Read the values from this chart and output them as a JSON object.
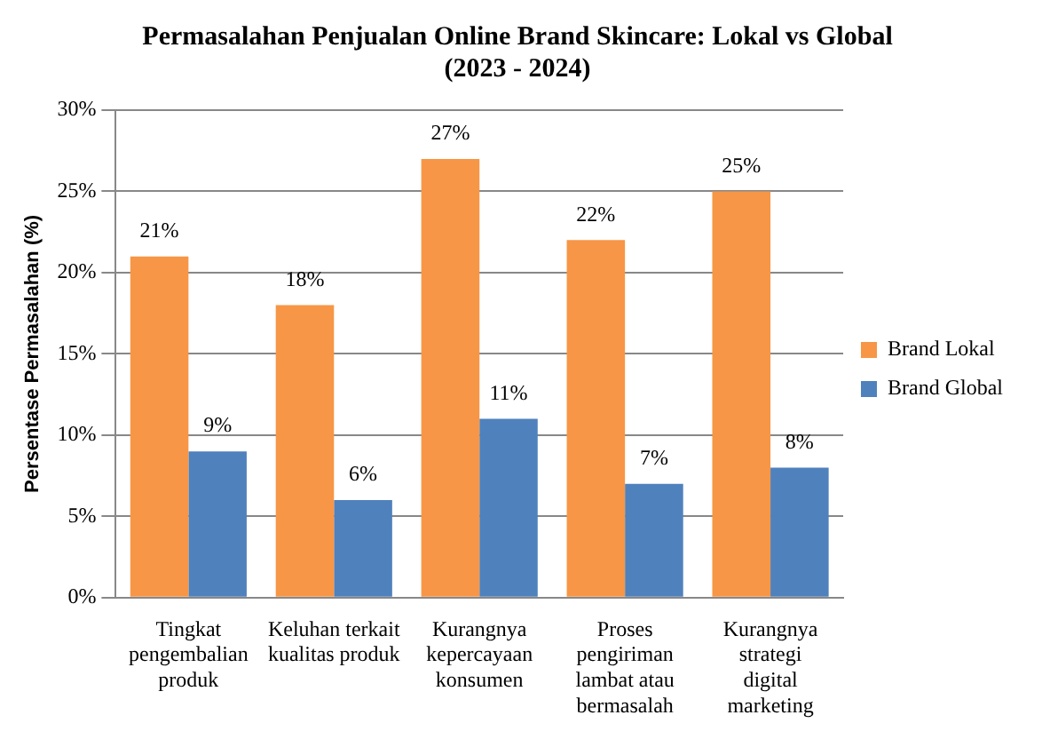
{
  "chart_data": {
    "type": "bar",
    "title": "Permasalahan Penjualan Online Brand Skincare: Lokal vs Global",
    "subtitle": "(2023 - 2024)",
    "ylabel": "Persentase Permasalahan (%)",
    "categories": [
      "Tingkat pengembalian produk",
      "Keluhan terkait kualitas produk",
      "Kurangnya kepercayaan konsumen",
      "Proses pengiriman lambat atau bermasalah",
      "Kurangnya strategi digital marketing"
    ],
    "series": [
      {
        "name": "Brand Lokal",
        "color": "#f79646",
        "values": [
          21,
          18,
          27,
          22,
          25
        ],
        "value_labels": [
          "21%",
          "18%",
          "27%",
          "22%",
          "25%"
        ]
      },
      {
        "name": "Brand Global",
        "color": "#4f81bd",
        "values": [
          9,
          6,
          11,
          7,
          8
        ],
        "value_labels": [
          "9%",
          "6%",
          "11%",
          "7%",
          "8%"
        ]
      }
    ],
    "ylim": [
      0,
      30
    ],
    "yticks": [
      {
        "value": 0,
        "label": "0%"
      },
      {
        "value": 5,
        "label": "5%"
      },
      {
        "value": 10,
        "label": "10%"
      },
      {
        "value": 15,
        "label": "15%"
      },
      {
        "value": 20,
        "label": "20%"
      },
      {
        "value": 25,
        "label": "25%"
      },
      {
        "value": 30,
        "label": "30%"
      }
    ],
    "grid": "y",
    "legend": "right"
  }
}
